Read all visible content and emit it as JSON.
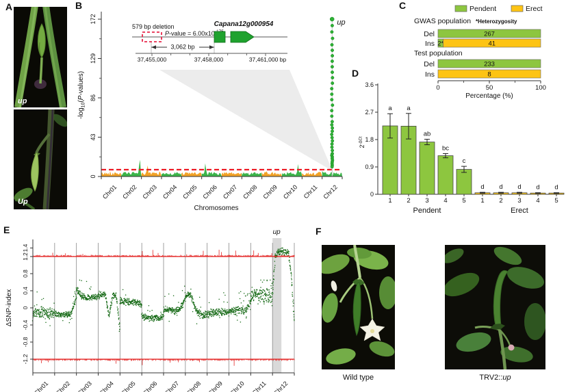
{
  "panel_labels": {
    "A": "A",
    "B": "B",
    "C": "C",
    "D": "D",
    "E": "E",
    "F": "F"
  },
  "panel_a": {
    "top_photo_tag": "up",
    "bottom_photo_tag": "Up"
  },
  "panel_f": {
    "caption_left": "Wild type",
    "caption_right_prefix": "TRV2::",
    "caption_right_italic": "up"
  },
  "chart_data": [
    {
      "panel": "B",
      "type": "scatter",
      "subtype": "manhattan-gwas",
      "ylabel_parts": {
        "pre": "-log",
        "sub": "10",
        "open": "(",
        "italic": "P",
        "post": "-values)"
      },
      "yticks": [
        0,
        43,
        86,
        129,
        172
      ],
      "ylim": [
        0,
        178
      ],
      "xlabel": "Chromosomes",
      "categories": [
        "Chr01",
        "Chr02",
        "Chr03",
        "Chr04",
        "Chr05",
        "Chr06",
        "Chr07",
        "Chr08",
        "Chr09",
        "Chr10",
        "Chr11",
        "Chr12"
      ],
      "chrom_colors": [
        "#F2A227",
        "#3CB54A"
      ],
      "threshold_value": 7.5,
      "threshold_color": "#EC1C24",
      "baseline_noise_max": 5,
      "spikes": [
        {
          "chrom_index": 1,
          "pos": 0.92,
          "height": 16
        },
        {
          "chrom_index": 2,
          "pos": 0.3,
          "height": 9
        },
        {
          "chrom_index": 5,
          "pos": 0.18,
          "height": 12
        },
        {
          "chrom_index": 9,
          "pos": 0.8,
          "height": 12
        }
      ],
      "peak": {
        "chrom_index": 11,
        "label": "up",
        "max_value": 172,
        "dot_color": "#2EB135"
      },
      "inset": {
        "deletion_label": "579 bp deletion",
        "pvalue_italic": "P",
        "pvalue_text": "-value = 6.00x10",
        "pvalue_exp": "-175",
        "gene_name": "Capana12g000954",
        "gene_color": "#1FA22E",
        "distance_label": "3,062 bp",
        "scale_labels": [
          "37,455,000",
          "37,458,000",
          "37,461,000 bp"
        ]
      }
    },
    {
      "panel": "C",
      "type": "bar",
      "subtype": "stacked-horizontal-percentage",
      "legend": [
        {
          "label": "Pendent",
          "color": "#8DC63F"
        },
        {
          "label": "Erect",
          "color": "#FDC414"
        }
      ],
      "note": "*Heterozygosity",
      "xticks": [
        0,
        50,
        100
      ],
      "xlabel": "Percentage (%)",
      "groups": [
        {
          "title": "GWAS population",
          "rows": [
            {
              "label": "Del",
              "segments": [
                {
                  "series": "Pendent",
                  "count": "267",
                  "pct": 100
                }
              ]
            },
            {
              "label": "Ins",
              "segments": [
                {
                  "series": "Pendent",
                  "count": "2*",
                  "pct": 5
                },
                {
                  "series": "Erect",
                  "count": "41",
                  "pct": 95
                }
              ]
            }
          ]
        },
        {
          "title": "Test population",
          "rows": [
            {
              "label": "Del",
              "segments": [
                {
                  "series": "Pendent",
                  "count": "233",
                  "pct": 100
                }
              ]
            },
            {
              "label": "Ins",
              "segments": [
                {
                  "series": "Erect",
                  "count": "8",
                  "pct": 100
                }
              ]
            }
          ]
        }
      ]
    },
    {
      "panel": "D",
      "type": "bar",
      "ylabel_base": "2",
      "ylabel_sup": "-ΔCt",
      "yticks": [
        0,
        0.9,
        1.8,
        2.7,
        3.6
      ],
      "ylim": [
        0,
        3.6
      ],
      "groups": [
        {
          "label": "Pendent",
          "label_color": "#2EA02E",
          "bar_color": "#8DC63F",
          "categories": [
            "1",
            "2",
            "3",
            "4",
            "5"
          ],
          "values": [
            2.25,
            2.24,
            1.72,
            1.27,
            0.82
          ],
          "errors": [
            0.4,
            0.42,
            0.09,
            0.07,
            0.1
          ],
          "letters": [
            "a",
            "a",
            "ab",
            "bc",
            "c"
          ]
        },
        {
          "label": "Erect",
          "label_color": "#EE8722",
          "bar_color": "#F8C51C",
          "categories": [
            "1",
            "2",
            "3",
            "4",
            "5"
          ],
          "values": [
            0.05,
            0.05,
            0.05,
            0.04,
            0.04
          ],
          "errors": [
            0.015,
            0.015,
            0.015,
            0.012,
            0.012
          ],
          "letters": [
            "d",
            "d",
            "d",
            "d",
            "d"
          ]
        }
      ]
    },
    {
      "panel": "E",
      "type": "scatter",
      "subtype": "delta-snp-index",
      "ylabel": "ΔSNP-index",
      "yticks": [
        1.4,
        1.2,
        0.8,
        0.4,
        0,
        -0.4,
        -0.8,
        -1.2
      ],
      "threshold_upper": 1.2,
      "threshold_lower": -1.2,
      "threshold_color": "#E32726",
      "point_color": "#156915",
      "categories": [
        "Chr01",
        "Chr02",
        "Chr03",
        "Chr04",
        "Chr05",
        "Chr06",
        "Chr07",
        "Chr08",
        "Chr09",
        "Chr10",
        "Chr11",
        "Chr12"
      ],
      "highlight": {
        "chrom_index": 11,
        "label": "up"
      },
      "profiles": [
        {
          "chrom": "Chr01",
          "mean": [
            -0.08,
            -0.13,
            -0.09,
            -0.15,
            -0.1
          ],
          "spread": 0.1,
          "outlier_rate": 0.1
        },
        {
          "chrom": "Chr02",
          "mean": [
            -0.15,
            -0.16,
            -0.15,
            -0.14,
            0.25
          ],
          "spread": 0.05,
          "outlier_rate": 0.05
        },
        {
          "chrom": "Chr03",
          "mean": [
            0.45,
            0.27,
            0.25,
            0.25,
            0.24
          ],
          "spread": 0.05,
          "outlier_rate": 0.05
        },
        {
          "chrom": "Chr04",
          "mean": [
            0.3,
            0.31,
            0.3,
            -0.2,
            0.3,
            0.28,
            -0.5
          ],
          "spread": 0.05,
          "outlier_rate": 0.06
        },
        {
          "chrom": "Chr05",
          "mean": [
            0.16,
            0.14,
            0.15,
            0.12,
            0.08
          ],
          "spread": 0.06,
          "outlier_rate": 0.06
        },
        {
          "chrom": "Chr06",
          "mean": [
            -0.2,
            -0.24,
            -0.22,
            -0.25,
            -0.2
          ],
          "spread": 0.06,
          "outlier_rate": 0.08
        },
        {
          "chrom": "Chr07",
          "mean": [
            -0.05,
            -0.04,
            -0.07,
            -0.03,
            0.22
          ],
          "spread": 0.06,
          "outlier_rate": 0.06
        },
        {
          "chrom": "Chr08",
          "mean": [
            0.3,
            0.3,
            -0.08,
            -0.17,
            -0.15
          ],
          "spread": 0.06,
          "outlier_rate": 0.06
        },
        {
          "chrom": "Chr09",
          "mean": [
            -0.12,
            -0.1,
            -0.14,
            -0.1,
            -0.12
          ],
          "spread": 0.07,
          "outlier_rate": 0.07
        },
        {
          "chrom": "Chr10",
          "mean": [
            -0.05,
            -0.07,
            -0.04,
            -0.06,
            0.12
          ],
          "spread": 0.07,
          "outlier_rate": 0.08
        },
        {
          "chrom": "Chr11",
          "mean": [
            0.28,
            0.31,
            0.26,
            0.3,
            0.2
          ],
          "spread": 0.12,
          "outlier_rate": 0.1
        },
        {
          "chrom": "Chr12",
          "mean": [
            0.25,
            1.2,
            1.3,
            1.31,
            1.3,
            1.3,
            1.26,
            0.7,
            -0.3
          ],
          "spread": 0.06,
          "outlier_rate": 0.04
        }
      ]
    }
  ]
}
